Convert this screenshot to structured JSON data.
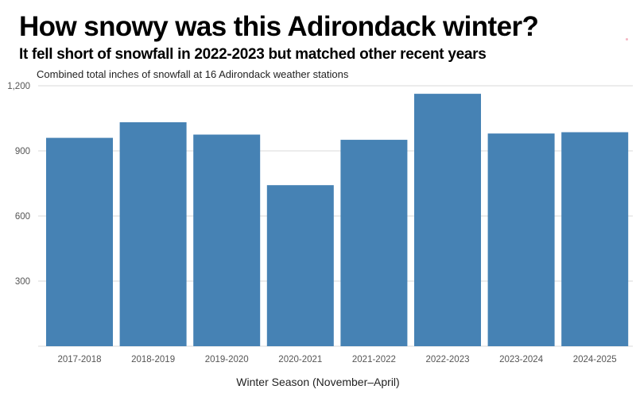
{
  "title": "How snowy was this Adirondack winter?",
  "subtitle": "It fell short of snowfall in 2022-2023 but matched other recent years",
  "note": "Combined total inches of snowfall at 16 Adirondack weather stations",
  "colors": {
    "bar": "#4682b4",
    "grid": "#e6e6e6",
    "background": "#ffffff"
  },
  "chart_data": {
    "type": "bar",
    "categories": [
      "2017-2018",
      "2018-2019",
      "2019-2020",
      "2020-2021",
      "2021-2022",
      "2022-2023",
      "2023-2024",
      "2024-2025"
    ],
    "values": [
      960,
      1032,
      975,
      742,
      951,
      1163,
      980,
      986
    ],
    "xlabel": "Winter Season (November–April)",
    "ylabel": "",
    "ylim": [
      0,
      1200
    ],
    "yticks": [
      300,
      600,
      900,
      1200
    ],
    "ytick_labels": [
      "300",
      "600",
      "900",
      "1,200"
    ],
    "grid": "horizontal",
    "legend": "none"
  }
}
